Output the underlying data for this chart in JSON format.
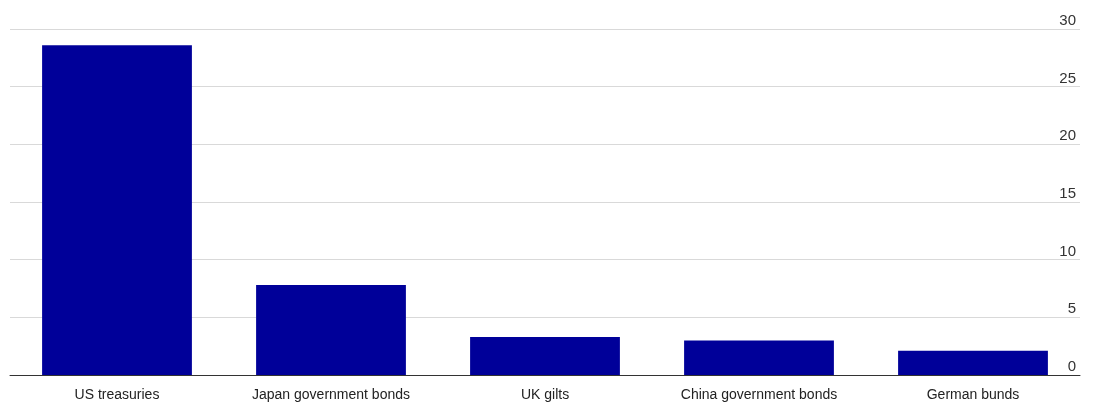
{
  "chart_data": {
    "type": "bar",
    "categories": [
      "US treasuries",
      "Japan government bonds",
      "UK gilts",
      "China government bonds",
      "German bunds"
    ],
    "values": [
      28.6,
      7.8,
      3.3,
      3.0,
      2.1
    ],
    "color": "#000099",
    "ylim": [
      0,
      30
    ],
    "yticks": [
      0,
      5,
      10,
      15,
      20,
      25,
      30
    ],
    "grid": "y"
  }
}
